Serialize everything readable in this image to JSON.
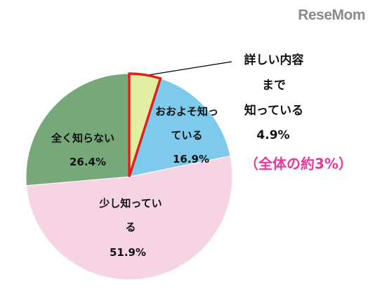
{
  "logo": "ReseMom",
  "chart_data": {
    "type": "pie",
    "categories": [
      "詳しい内容\nまで\n知っている",
      "おおよそ知っ\nている",
      "少し知ってい\nる",
      "全く知らない"
    ],
    "values": [
      4.9,
      16.9,
      51.9,
      26.4
    ],
    "value_labels": [
      "4.9%",
      "16.9%",
      "51.9%",
      "26.4%"
    ],
    "colors": [
      "#e3eda2",
      "#7dcaec",
      "#f7d4e4",
      "#77a87a"
    ],
    "highlight_color": "#e0201e",
    "annotation": "（全体の約3%）"
  }
}
